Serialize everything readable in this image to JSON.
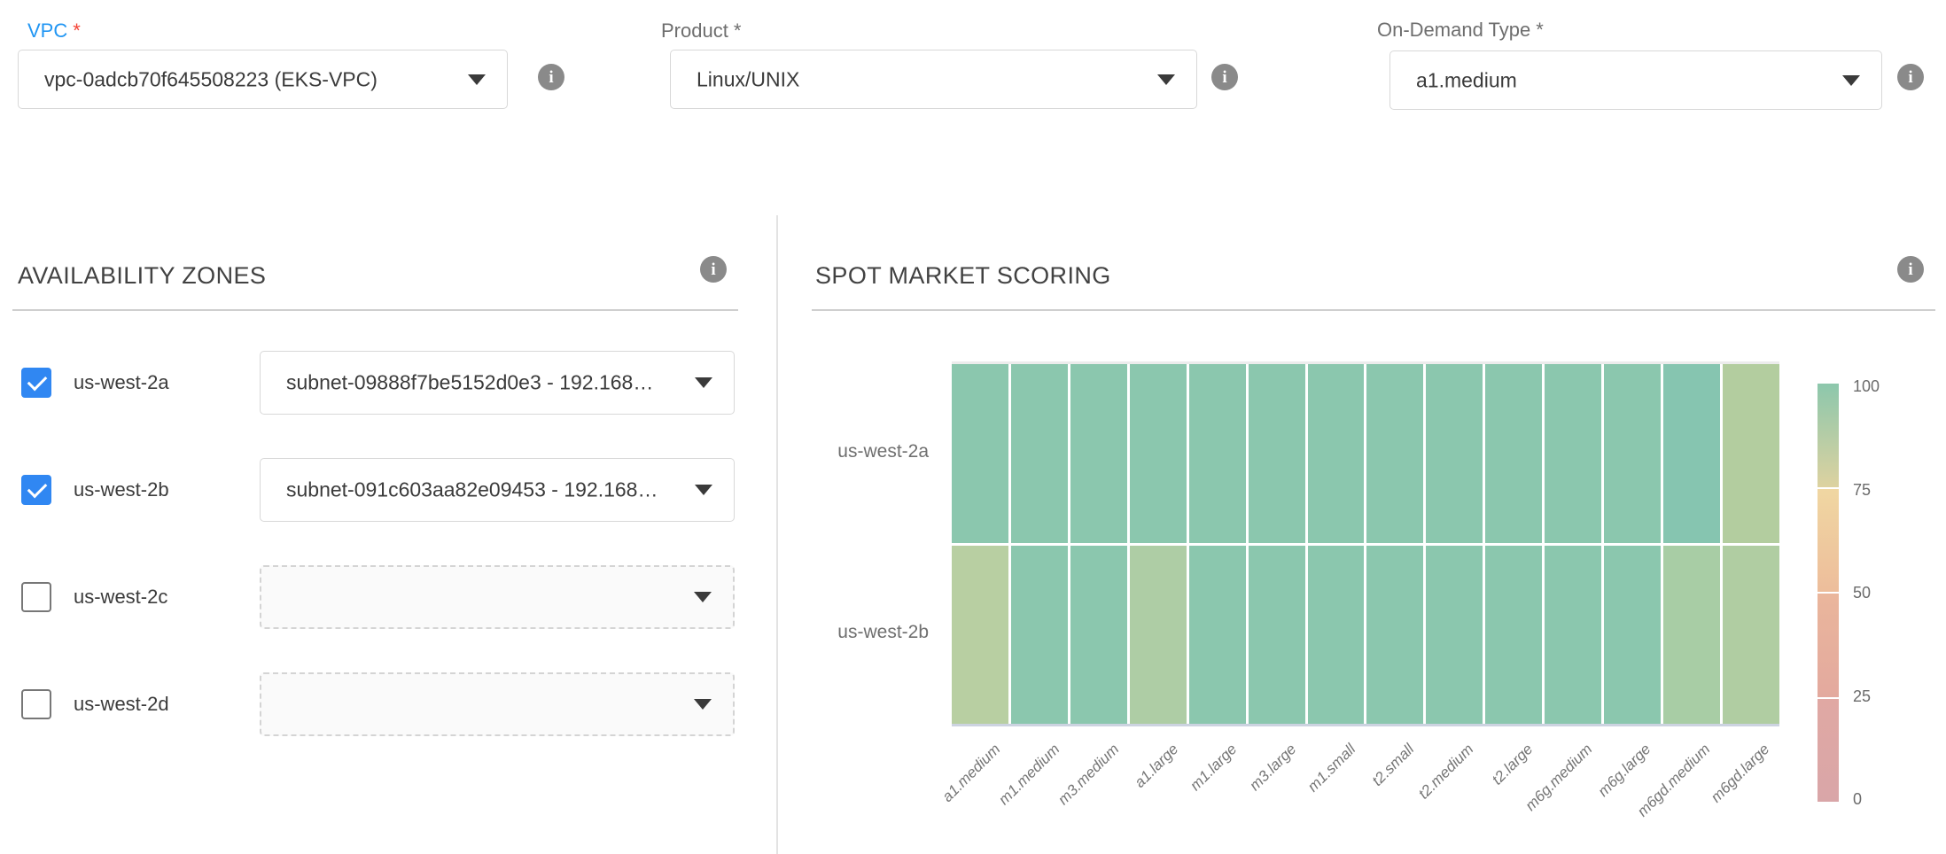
{
  "colors": {
    "label_blue": "#2196f3",
    "asterisk_red": "#f44336",
    "checkbox_blue": "#3087f2",
    "info_gray": "#8a8a8a",
    "teal_high": "#8bc7ae",
    "green_low": "#b8cfa2"
  },
  "required_mark": "*",
  "form": {
    "fields": [
      {
        "label": "VPC",
        "required": true,
        "value": "vpc-0adcb70f645508223 (EKS-VPC)"
      },
      {
        "label": "Product",
        "required": true,
        "value": "Linux/UNIX"
      },
      {
        "label": "On-Demand Type",
        "required": true,
        "value": "a1.medium"
      }
    ]
  },
  "availability_zones": {
    "title": "AVAILABILITY ZONES",
    "rows": [
      {
        "zone": "us-west-2a",
        "checked": true,
        "subnet": "subnet-09888f7be5152d0e3 - 192.168…"
      },
      {
        "zone": "us-west-2b",
        "checked": true,
        "subnet": "subnet-091c603aa82e09453 - 192.168…"
      },
      {
        "zone": "us-west-2c",
        "checked": false,
        "subnet": ""
      },
      {
        "zone": "us-west-2d",
        "checked": false,
        "subnet": ""
      }
    ]
  },
  "spot_market": {
    "title": "SPOT MARKET SCORING"
  },
  "chart_data": {
    "type": "heatmap",
    "title": "SPOT MARKET SCORING",
    "x_categories": [
      "a1.medium",
      "m1.medium",
      "m3.medium",
      "a1.large",
      "m1.large",
      "m3.large",
      "m1.small",
      "t2.small",
      "t2.medium",
      "t2.large",
      "m6g.medium",
      "m6g.large",
      "m6gd.medium",
      "m6gd.large"
    ],
    "y_categories": [
      "us-west-2a",
      "us-west-2b"
    ],
    "series": [
      {
        "name": "us-west-2a",
        "values": [
          95,
          95,
          95,
          95,
          95,
          95,
          95,
          95,
          95,
          95,
          95,
          95,
          96,
          83
        ],
        "colors": [
          "#8bc7ae",
          "#8bc7ae",
          "#8bc7ae",
          "#8bc7ae",
          "#8bc7ae",
          "#8bc7ae",
          "#8bc7ae",
          "#8bc7ae",
          "#8bc7ae",
          "#8bc7ae",
          "#8bc7ae",
          "#8bc7ae",
          "#86c5b0",
          "#b3cd9f"
        ]
      },
      {
        "name": "us-west-2b",
        "values": [
          83,
          95,
          95,
          86,
          95,
          95,
          95,
          95,
          95,
          95,
          95,
          95,
          86,
          84
        ],
        "colors": [
          "#b8cfa2",
          "#8bc7ae",
          "#8bc7ae",
          "#aecda5",
          "#8bc7ae",
          "#8bc7ae",
          "#8bc7ae",
          "#8bc7ae",
          "#8bc7ae",
          "#8bc7ae",
          "#8bc7ae",
          "#8bc7ae",
          "#a8cda5",
          "#b0cda2"
        ]
      }
    ],
    "value_range": [
      0,
      100
    ],
    "colorbar": {
      "tick_labels": [
        "100",
        "75",
        "50",
        "25",
        "0"
      ],
      "segments": [
        [
          "#8cc7ac",
          "#ddd2a0"
        ],
        [
          "#f0d7a2",
          "#edbd9b"
        ],
        [
          "#eab69c",
          "#e3a99e"
        ],
        [
          "#e0a8a3",
          "#d9a6a8"
        ]
      ]
    },
    "legend_position": "right",
    "grid": false
  }
}
